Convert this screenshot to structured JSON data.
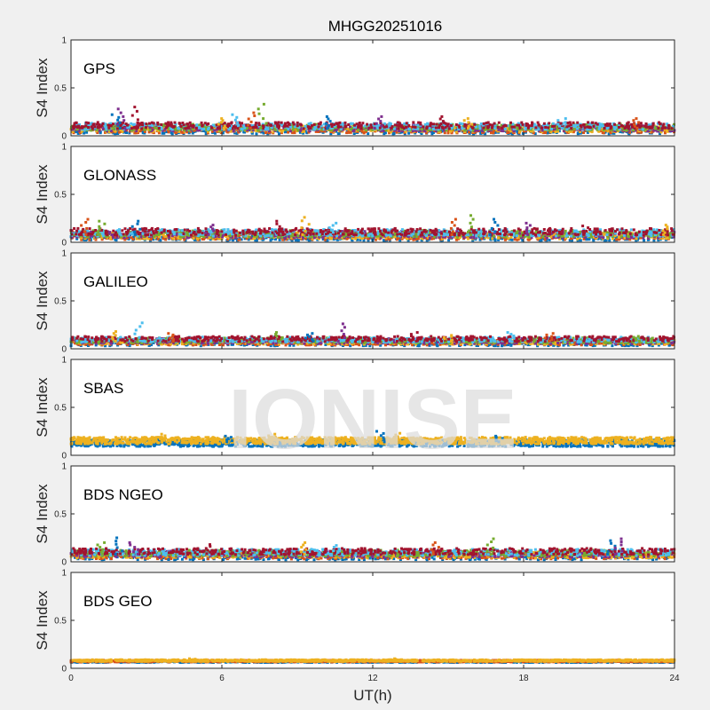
{
  "chart_data": {
    "type": "scatter",
    "title": "MHGG20251016",
    "xlabel": "UT(h)",
    "ylabel": "S4 Index",
    "xlim": [
      0,
      24
    ],
    "ylim": [
      0,
      1
    ],
    "x_ticks": [
      "0",
      "6",
      "12",
      "18",
      "24"
    ],
    "y_ticks": [
      "0",
      "0.5",
      "1"
    ],
    "watermark": "IONISE",
    "grid": false,
    "colors": [
      "#0072BD",
      "#D95319",
      "#EDB120",
      "#7E2F8E",
      "#77AC30",
      "#4DBEEE",
      "#A2142F"
    ],
    "panels": [
      {
        "name": "GPS",
        "series_count": 7,
        "baseline": 0.08,
        "typical_range": [
          0.03,
          0.15
        ],
        "peaks": [
          {
            "x": 1.8,
            "y": 0.22
          },
          {
            "x": 2.0,
            "y": 0.28
          },
          {
            "x": 2.6,
            "y": 0.3
          },
          {
            "x": 6.0,
            "y": 0.18
          },
          {
            "x": 6.5,
            "y": 0.22
          },
          {
            "x": 7.2,
            "y": 0.24
          },
          {
            "x": 7.6,
            "y": 0.33
          },
          {
            "x": 10.2,
            "y": 0.2
          },
          {
            "x": 12.2,
            "y": 0.2
          },
          {
            "x": 14.8,
            "y": 0.2
          },
          {
            "x": 15.8,
            "y": 0.18
          },
          {
            "x": 19.5,
            "y": 0.18
          },
          {
            "x": 22.5,
            "y": 0.18
          }
        ]
      },
      {
        "name": "GLONASS",
        "series_count": 7,
        "baseline": 0.08,
        "typical_range": [
          0.03,
          0.16
        ],
        "peaks": [
          {
            "x": 0.5,
            "y": 0.24
          },
          {
            "x": 1.2,
            "y": 0.22
          },
          {
            "x": 2.6,
            "y": 0.22
          },
          {
            "x": 5.5,
            "y": 0.18
          },
          {
            "x": 8.2,
            "y": 0.22
          },
          {
            "x": 9.3,
            "y": 0.26
          },
          {
            "x": 10.4,
            "y": 0.2
          },
          {
            "x": 15.2,
            "y": 0.24
          },
          {
            "x": 16.0,
            "y": 0.28
          },
          {
            "x": 16.8,
            "y": 0.24
          },
          {
            "x": 18.2,
            "y": 0.2
          },
          {
            "x": 20.5,
            "y": 0.17
          },
          {
            "x": 23.6,
            "y": 0.18
          }
        ]
      },
      {
        "name": "GALILEO",
        "series_count": 7,
        "baseline": 0.08,
        "typical_range": [
          0.04,
          0.14
        ],
        "peaks": [
          {
            "x": 1.8,
            "y": 0.18
          },
          {
            "x": 2.7,
            "y": 0.27
          },
          {
            "x": 4.0,
            "y": 0.16
          },
          {
            "x": 8.3,
            "y": 0.17
          },
          {
            "x": 9.5,
            "y": 0.16
          },
          {
            "x": 10.8,
            "y": 0.26
          },
          {
            "x": 13.7,
            "y": 0.17
          },
          {
            "x": 15.0,
            "y": 0.14
          },
          {
            "x": 17.5,
            "y": 0.17
          },
          {
            "x": 19.0,
            "y": 0.16
          },
          {
            "x": 22.5,
            "y": 0.13
          }
        ]
      },
      {
        "name": "SBAS",
        "series_count": 2,
        "series_colors": [
          "#0072BD",
          "#EDB120"
        ],
        "baseline": 0.14,
        "typical_range": [
          0.07,
          0.2
        ],
        "peaks": [
          {
            "x": 3.7,
            "y": 0.22
          },
          {
            "x": 6.3,
            "y": 0.2
          },
          {
            "x": 8.0,
            "y": 0.22
          },
          {
            "x": 12.3,
            "y": 0.25
          },
          {
            "x": 13.0,
            "y": 0.23
          },
          {
            "x": 17.0,
            "y": 0.2
          }
        ]
      },
      {
        "name": "BDS NGEO",
        "series_count": 7,
        "baseline": 0.08,
        "typical_range": [
          0.02,
          0.14
        ],
        "peaks": [
          {
            "x": 1.2,
            "y": 0.2
          },
          {
            "x": 1.9,
            "y": 0.25
          },
          {
            "x": 2.5,
            "y": 0.2
          },
          {
            "x": 5.5,
            "y": 0.18
          },
          {
            "x": 9.3,
            "y": 0.2
          },
          {
            "x": 10.5,
            "y": 0.17
          },
          {
            "x": 14.5,
            "y": 0.2
          },
          {
            "x": 16.7,
            "y": 0.24
          },
          {
            "x": 21.5,
            "y": 0.22
          },
          {
            "x": 21.8,
            "y": 0.24
          }
        ]
      },
      {
        "name": "BDS GEO",
        "series_count": 3,
        "series_colors": [
          "#0072BD",
          "#D95319",
          "#EDB120"
        ],
        "baseline": 0.075,
        "typical_range": [
          0.06,
          0.095
        ],
        "peaks": [
          {
            "x": 4.8,
            "y": 0.1
          },
          {
            "x": 13.0,
            "y": 0.1
          }
        ]
      }
    ]
  }
}
